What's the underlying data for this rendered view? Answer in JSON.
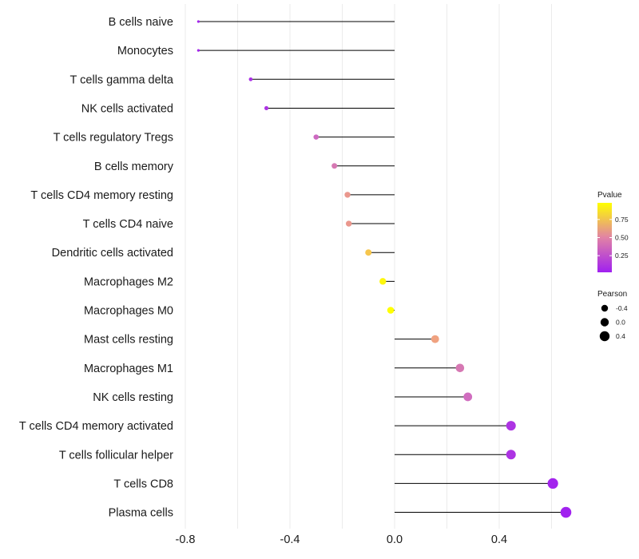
{
  "chart_data": {
    "type": "lollipop",
    "title": "",
    "xlabel": "",
    "ylabel": "",
    "xlim": [
      -0.8,
      0.7
    ],
    "x_ticks": [
      -0.8,
      -0.4,
      0.0,
      0.4
    ],
    "x_tick_labels": [
      "-0.8",
      "-0.4",
      "0.0",
      "0.4"
    ],
    "grid": true,
    "baseline": 0.0,
    "categories": [
      "B cells naive",
      "Monocytes",
      "T cells gamma delta",
      "NK cells activated",
      "T cells regulatory  Tregs",
      "B cells memory",
      "T cells CD4 memory resting",
      "T cells CD4 naive",
      "Dendritic cells activated",
      "Macrophages M2",
      "Macrophages M0",
      "Mast cells resting",
      "Macrophages M1",
      "NK cells resting",
      "T cells CD4 memory activated",
      "T cells follicular helper",
      "T cells CD8",
      "Plasma cells"
    ],
    "pearson": [
      -0.75,
      -0.75,
      -0.55,
      -0.49,
      -0.3,
      -0.23,
      -0.18,
      -0.175,
      -0.1,
      -0.045,
      -0.015,
      0.155,
      0.25,
      0.28,
      0.445,
      0.445,
      0.605,
      0.655
    ],
    "pvalue": [
      0.04,
      0.04,
      0.1,
      0.12,
      0.38,
      0.45,
      0.6,
      0.6,
      0.78,
      0.95,
      0.98,
      0.65,
      0.45,
      0.4,
      0.12,
      0.12,
      0.04,
      0.03
    ],
    "legend": {
      "position": "right",
      "color": {
        "title": "Pvalue",
        "ticks": [
          "0.25",
          "0.50",
          "0.75"
        ],
        "tick_values": [
          0.25,
          0.5,
          0.75
        ],
        "range": [
          0.02,
          0.98
        ],
        "low_color": "#a020f0",
        "high_color": "#ffff00"
      },
      "size": {
        "title": "Pearson",
        "ticks": [
          "-0.4",
          "0.0",
          "0.4"
        ],
        "tick_values": [
          -0.4,
          0.0,
          0.4
        ]
      }
    }
  }
}
